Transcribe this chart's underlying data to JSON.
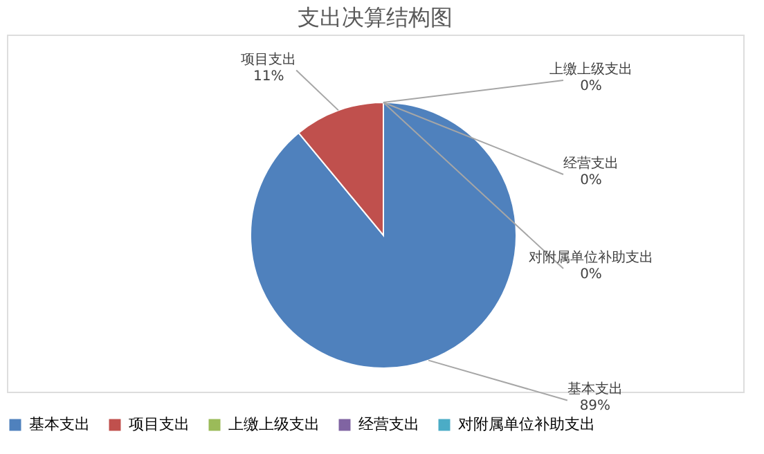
{
  "chart_data": {
    "type": "pie",
    "title": "支出决算结构图",
    "categories": [
      "基本支出",
      "项目支出",
      "上缴上级支出",
      "经营支出",
      "对附属单位补助支出"
    ],
    "values": [
      89,
      11,
      0,
      0,
      0
    ],
    "colors": [
      "#4f81bd",
      "#c0504d",
      "#9bbb59",
      "#8064a2",
      "#4bacc6"
    ],
    "value_labels": [
      "89%",
      "11%",
      "0%",
      "0%",
      "0%"
    ],
    "legend": "bottom"
  }
}
